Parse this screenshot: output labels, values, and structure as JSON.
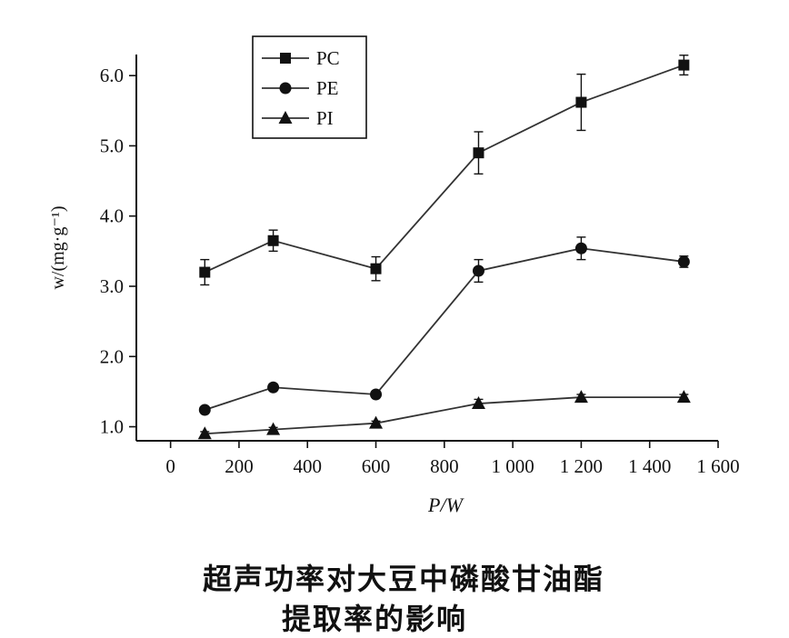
{
  "chart_data": {
    "type": "line",
    "xlabel": "P/W",
    "ylabel": "w/(mg·g⁻¹)",
    "xlim": [
      -100,
      1600
    ],
    "ylim": [
      0.8,
      6.3
    ],
    "x_ticks": [
      "0",
      "200",
      "400",
      "600",
      "800",
      "1 000",
      "1 200",
      "1 400",
      "1 600"
    ],
    "x_tick_values": [
      0,
      200,
      400,
      600,
      800,
      1000,
      1200,
      1400,
      1600
    ],
    "y_ticks": [
      "1.0",
      "2.0",
      "3.0",
      "4.0",
      "5.0",
      "6.0"
    ],
    "y_tick_values": [
      1,
      2,
      3,
      4,
      5,
      6
    ],
    "grid": false,
    "legend_position": "top-left",
    "x": [
      100,
      300,
      600,
      900,
      1200,
      1500
    ],
    "series": [
      {
        "name": "PC",
        "marker": "square",
        "values": [
          3.2,
          3.65,
          3.25,
          4.9,
          5.62,
          6.15
        ],
        "errors": [
          0.18,
          0.15,
          0.17,
          0.3,
          0.4,
          0.14
        ]
      },
      {
        "name": "PE",
        "marker": "circle",
        "values": [
          1.24,
          1.56,
          1.46,
          3.22,
          3.54,
          3.35
        ],
        "errors": [
          0.04,
          0.04,
          0.04,
          0.16,
          0.16,
          0.08
        ]
      },
      {
        "name": "PI",
        "marker": "triangle",
        "values": [
          0.9,
          0.96,
          1.05,
          1.33,
          1.42,
          1.42
        ],
        "errors": [
          0.03,
          0.03,
          0.03,
          0.06,
          0.04,
          0.04
        ]
      }
    ]
  },
  "caption": {
    "line1": "超声功率对大豆中磷酸甘油酯",
    "line2": "提取率的影响"
  }
}
